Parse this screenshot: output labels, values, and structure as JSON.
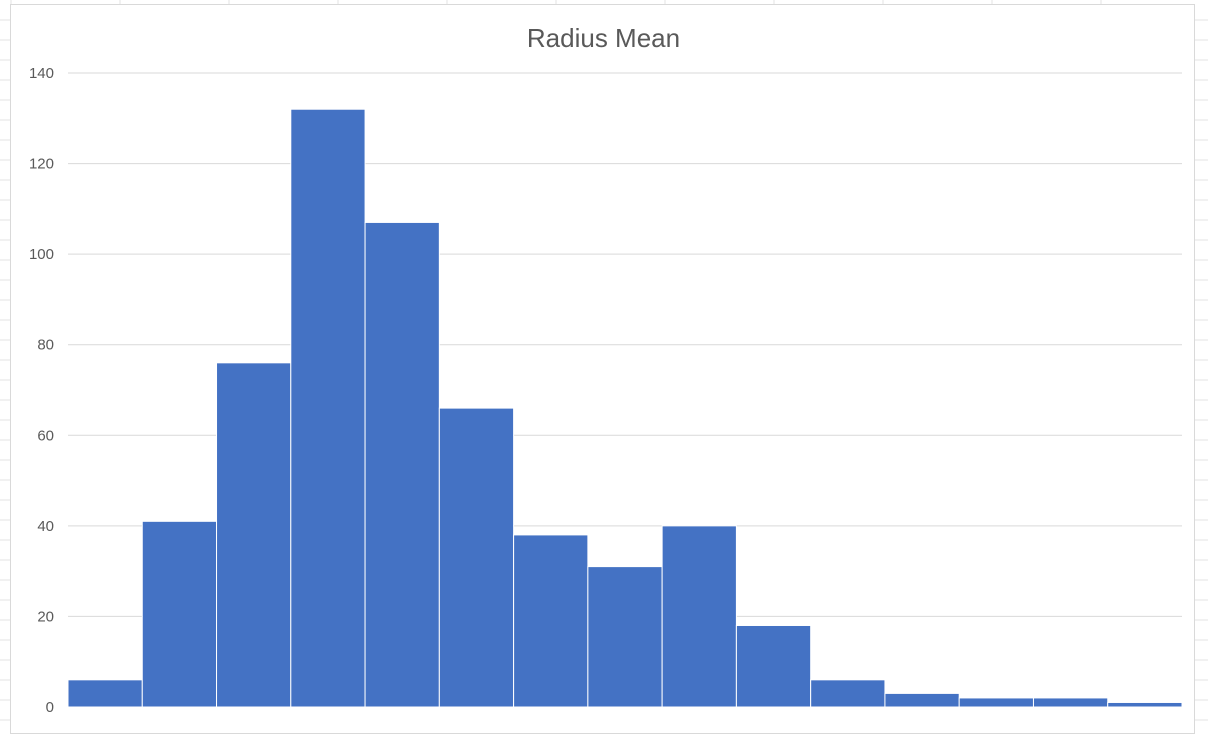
{
  "chart_data": {
    "type": "bar",
    "title": "Radius Mean",
    "xlabel": "",
    "ylabel": "",
    "ylim": [
      0,
      140
    ],
    "yticks": [
      0,
      20,
      40,
      60,
      80,
      100,
      120,
      140
    ],
    "grid": true,
    "legend": "none",
    "bar_color": "#4472C4",
    "values": [
      6,
      41,
      76,
      132,
      107,
      66,
      38,
      31,
      40,
      18,
      6,
      3,
      2,
      2,
      1
    ]
  }
}
